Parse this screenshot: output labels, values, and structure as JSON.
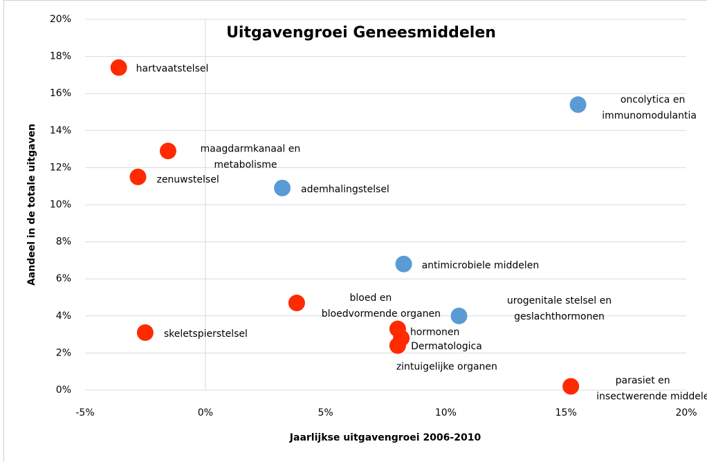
{
  "chart_data": {
    "type": "scatter",
    "title": "Uitgavengroei Geneesmiddelen",
    "x_label": "Jaarlijkse uitgavengroei 2006-2010",
    "y_label": "Aandeel in de totale uitgaven",
    "xlim": [
      -5,
      20
    ],
    "ylim": [
      0,
      20
    ],
    "xticks": [
      {
        "value": -5,
        "label": "-5%"
      },
      {
        "value": 0,
        "label": "0%"
      },
      {
        "value": 5,
        "label": "5%"
      },
      {
        "value": 10,
        "label": "10%"
      },
      {
        "value": 15,
        "label": "15%"
      },
      {
        "value": 20,
        "label": "20%"
      }
    ],
    "yticks": [
      {
        "value": 0,
        "label": "0%"
      },
      {
        "value": 2,
        "label": "2%"
      },
      {
        "value": 4,
        "label": "4%"
      },
      {
        "value": 6,
        "label": "6%"
      },
      {
        "value": 8,
        "label": "8%"
      },
      {
        "value": 10,
        "label": "10%"
      },
      {
        "value": 12,
        "label": "12%"
      },
      {
        "value": 14,
        "label": "14%"
      },
      {
        "value": 16,
        "label": "16%"
      },
      {
        "value": 18,
        "label": "18%"
      },
      {
        "value": 20,
        "label": "20%"
      }
    ],
    "grid": true,
    "series": [
      {
        "color": "#ff2a00",
        "x": [
          -3.6,
          -1.55,
          -2.8,
          -2.5,
          3.8,
          8.0,
          8.15,
          8.0,
          15.2
        ],
        "values": [
          17.4,
          12.9,
          11.5,
          3.1,
          4.7,
          3.3,
          2.8,
          2.4,
          0.2
        ],
        "labels": [
          [
            "hartvaatstelsel"
          ],
          [
            "maagdarmkanaal en",
            "metabolisme"
          ],
          [
            "zenuwstelsel"
          ],
          [
            "skeletspierstelsel"
          ],
          [
            "bloed en",
            "bloedvormende organen"
          ],
          [
            "hormonen"
          ],
          [
            "Dermatologica"
          ],
          [
            "zintuigelijke organen"
          ],
          [
            "parasiet en",
            "insectwerende middelen"
          ]
        ]
      },
      {
        "color": "#5b9bd5",
        "x": [
          15.5,
          3.2,
          8.25,
          10.55
        ],
        "values": [
          15.4,
          10.9,
          6.8,
          4.0
        ],
        "labels": [
          [
            "oncolytica en",
            "immunomodulantia"
          ],
          [
            "ademhalingstelsel"
          ],
          [
            "antimicrobiele middelen"
          ],
          [
            "urogenitale stelsel en",
            "geslachthormonen"
          ]
        ]
      }
    ]
  }
}
